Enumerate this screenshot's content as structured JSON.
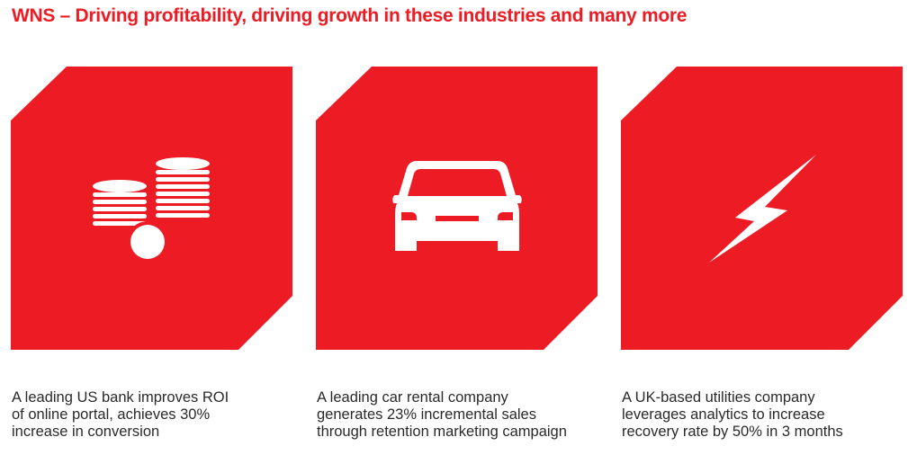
{
  "header": {
    "title": "WNS – Driving profitability, driving growth in these industries and many more"
  },
  "colors": {
    "brand_red": "#ed1c24",
    "icon_fill": "#ffffff",
    "caption_text": "#2a2a2a"
  },
  "cards": [
    {
      "icon": "coins-icon",
      "caption_lines": [
        "A leading US bank improves ROI",
        "of online portal, achieves 30%",
        "increase in conversion"
      ]
    },
    {
      "icon": "car-icon",
      "caption_lines": [
        "A leading car rental company",
        "generates 23% incremental sales",
        "through retention marketing campaign"
      ]
    },
    {
      "icon": "lightning-bolt-icon",
      "caption_lines": [
        "A UK-based utilities company",
        "leverages analytics to increase",
        "recovery rate by 50% in 3 months"
      ]
    }
  ]
}
